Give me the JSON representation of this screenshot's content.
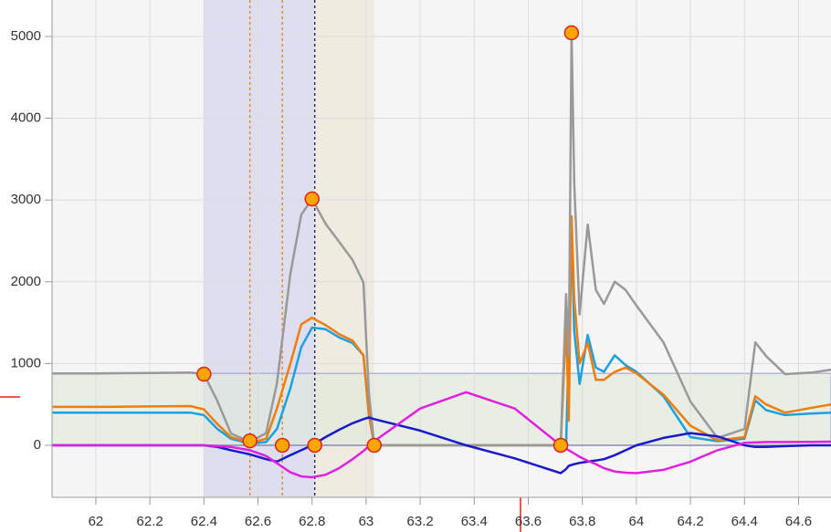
{
  "chart_data": {
    "type": "line",
    "x": [
      61.84,
      62.0,
      62.2,
      62.35,
      62.4,
      62.45,
      62.5,
      62.57,
      62.63,
      62.67,
      62.72,
      62.76,
      62.8,
      62.85,
      62.9,
      62.95,
      62.99,
      63.01,
      63.03,
      63.2,
      63.37,
      63.55,
      63.72,
      63.74,
      63.75,
      63.76,
      63.77,
      63.79,
      63.82,
      63.85,
      63.88,
      63.92,
      63.96,
      64.0,
      64.1,
      64.2,
      64.3,
      64.4,
      64.44,
      64.48,
      64.55,
      64.65,
      64.72
    ],
    "series": [
      {
        "color": "#1ba1e2",
        "values": [
          400,
          400,
          400,
          400,
          370,
          200,
          80,
          20,
          40,
          200,
          700,
          1200,
          1440,
          1420,
          1320,
          1250,
          1100,
          380,
          0,
          0,
          0,
          0,
          0,
          0,
          1200,
          2600,
          1400,
          750,
          1350,
          950,
          900,
          1100,
          980,
          900,
          600,
          100,
          50,
          80,
          550,
          430,
          370,
          390,
          400
        ]
      },
      {
        "color": "#f07d0a",
        "values": [
          470,
          470,
          475,
          480,
          440,
          260,
          100,
          30,
          80,
          450,
          1000,
          1480,
          1560,
          1470,
          1360,
          1280,
          1100,
          400,
          0,
          0,
          0,
          0,
          0,
          1500,
          300,
          2800,
          1800,
          1000,
          1250,
          800,
          800,
          900,
          950,
          880,
          620,
          240,
          60,
          100,
          600,
          500,
          400,
          460,
          500
        ]
      },
      {
        "color": "#999999",
        "values": [
          880,
          880,
          885,
          890,
          870,
          540,
          145,
          40,
          150,
          760,
          2100,
          2820,
          3013,
          2710,
          2490,
          2265,
          1990,
          650,
          0,
          0,
          0,
          0,
          0,
          1850,
          1090,
          5045,
          3210,
          1600,
          2700,
          1900,
          1730,
          2000,
          1900,
          1710,
          1260,
          535,
          90,
          200,
          1260,
          1090,
          870,
          890,
          925
        ]
      },
      {
        "color": "#1a1acc",
        "values": [
          0,
          0,
          0,
          0,
          0,
          -20,
          -60,
          -110,
          -170,
          -200,
          -120,
          -60,
          0,
          100,
          190,
          270,
          320,
          340,
          320,
          180,
          0,
          -160,
          -340,
          -290,
          -250,
          -240,
          -230,
          -215,
          -200,
          -185,
          -170,
          -120,
          -60,
          0,
          90,
          150,
          110,
          0,
          -20,
          -20,
          -10,
          0,
          0
        ]
      },
      {
        "color": "#e020e0",
        "values": [
          0,
          0,
          0,
          0,
          0,
          -10,
          -20,
          -60,
          -130,
          -220,
          -330,
          -380,
          -390,
          -360,
          -280,
          -170,
          -70,
          -10,
          50,
          450,
          650,
          450,
          0,
          -40,
          -60,
          -80,
          -100,
          -140,
          -190,
          -230,
          -280,
          -320,
          -335,
          -340,
          -300,
          -200,
          -60,
          30,
          35,
          40,
          40,
          43,
          45
        ]
      }
    ],
    "markers": {
      "color": "#ffa500",
      "x": [
        62.4,
        62.57,
        62.69,
        62.8,
        62.81,
        63.03,
        63.72,
        63.76
      ],
      "y": [
        870,
        55,
        0,
        3013,
        0,
        0,
        0,
        5045
      ]
    },
    "regions": [
      {
        "x": [
          62.4,
          62.81
        ],
        "color": "#d8d8f0"
      },
      {
        "x": [
          62.81,
          63.03
        ],
        "color": "#efe9dc"
      }
    ],
    "band": {
      "y": [
        0,
        880
      ],
      "color": "#dfe9d8"
    },
    "vlines": [
      {
        "x": 62.57,
        "color": "#f07d0a"
      },
      {
        "x": 62.69,
        "color": "#f07d0a"
      },
      {
        "x": 62.81,
        "color": "#1a1a66"
      }
    ],
    "xlim": [
      61.838,
      64.72
    ],
    "ylim": [
      -636,
      5446
    ],
    "xticks": [
      62,
      62.2,
      62.4,
      62.6,
      62.8,
      63,
      63.2,
      63.4,
      63.6,
      63.8,
      64,
      64.2,
      64.4,
      64.6
    ],
    "yticks": [
      0,
      1000,
      2000,
      3000,
      4000,
      5000
    ],
    "grid": true
  }
}
